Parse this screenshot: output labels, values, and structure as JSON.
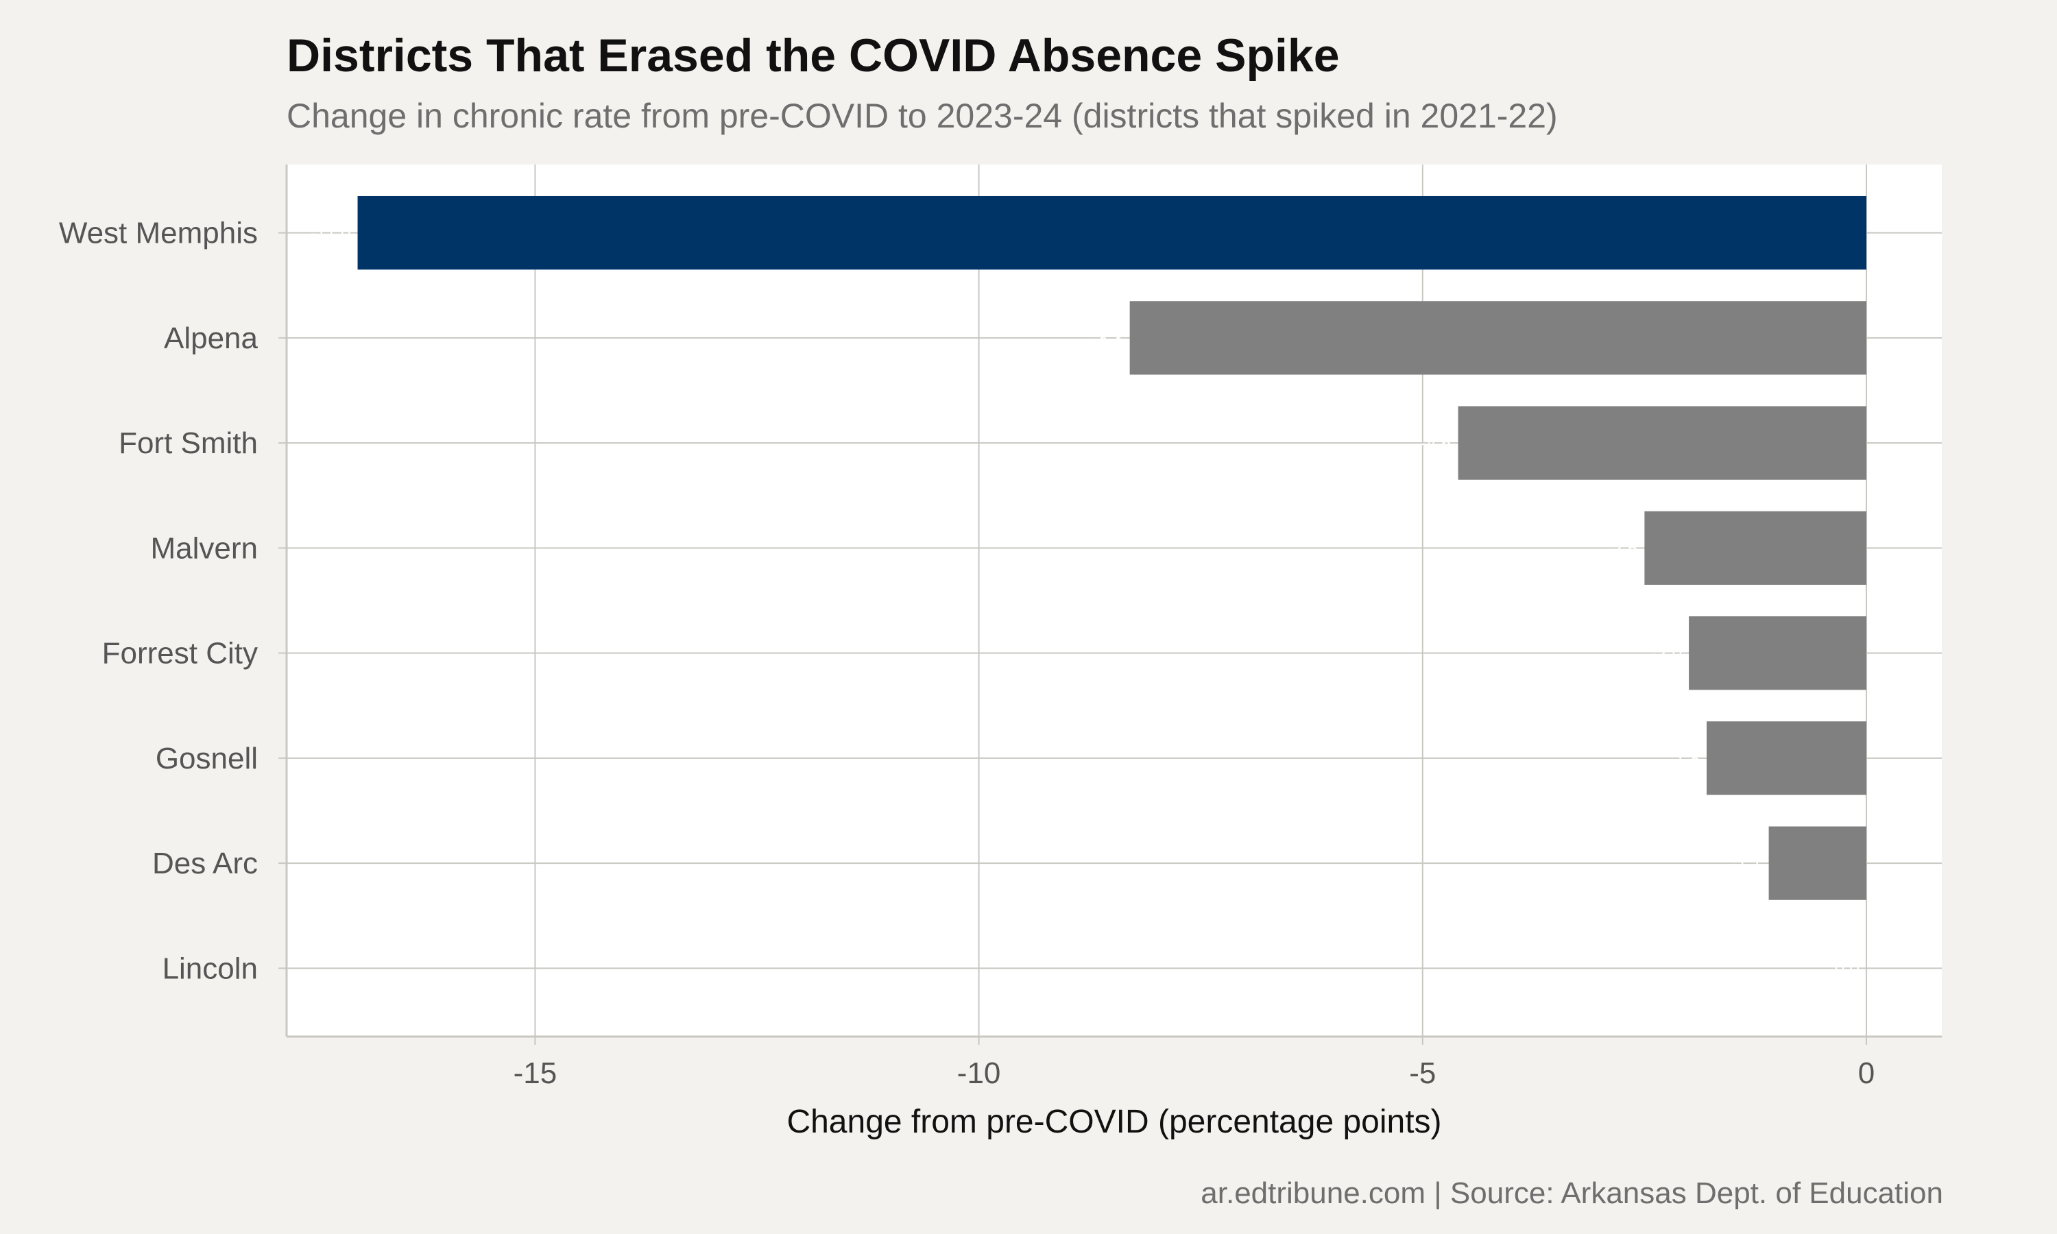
{
  "chart_data": {
    "type": "bar",
    "orientation": "horizontal",
    "title": "Districts That Erased the COVID Absence Spike",
    "subtitle": "Change in chronic rate from pre-COVID to 2023-24 (districts that spiked in 2021-22)",
    "caption": "ar.edtribune.com | Source: Arkansas Dept. of Education",
    "xlabel": "Change from pre-COVID (percentage points)",
    "ylabel": "",
    "xlim": [
      -17.8,
      0.85
    ],
    "xticks": [
      -15,
      -10,
      -5,
      0
    ],
    "xtick_labels": [
      "-15",
      "-10",
      "-5",
      "0"
    ],
    "grid": true,
    "legend": "none",
    "categories": [
      "West Memphis",
      "Alpena",
      "Fort Smith",
      "Malvern",
      "Forrest City",
      "Gosnell",
      "Des Arc",
      "Lincoln"
    ],
    "values": [
      -17.0,
      -8.3,
      -4.6,
      -2.5,
      -2.0,
      -1.8,
      -1.1,
      0.0
    ],
    "value_labels": [
      "-17.0",
      "-8.3",
      "-4.6",
      "-2.5",
      "-2.0",
      "-1.8",
      "-1.1",
      "0.0"
    ],
    "colors": {
      "highlight": "#003366",
      "default": "#808080",
      "panel": "#ffffff",
      "grid": "#c8c8c2",
      "background": "#f4f2ee"
    },
    "highlight_category": "West Memphis"
  }
}
